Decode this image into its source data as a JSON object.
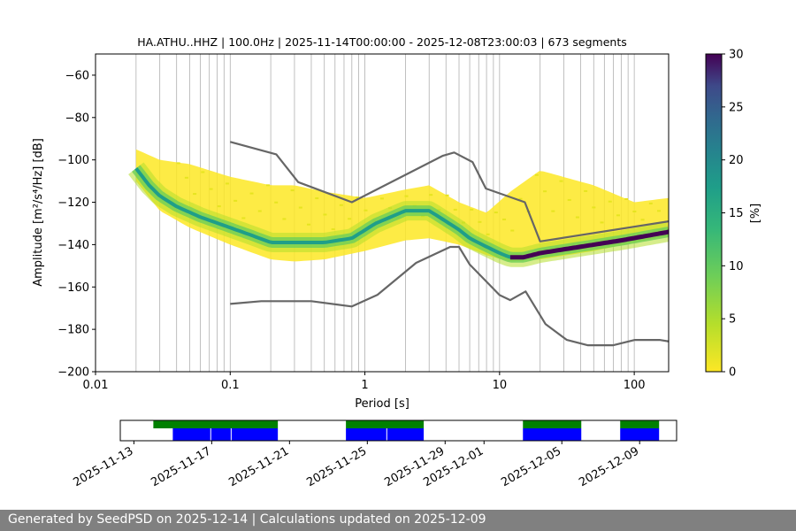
{
  "chart_data": [
    {
      "type": "heatmap",
      "title": "HA.ATHU..HHZ | 100.0Hz | 2025-11-14T00:00:00 - 2025-12-08T23:00:03 | 673 segments",
      "xlabel": "Period [s]",
      "ylabel": "Amplitude [m²/s⁴/Hz] [dB]",
      "x_scale": "log",
      "xlim": [
        0.01,
        180
      ],
      "ylim": [
        -200,
        -50
      ],
      "x_ticks": [
        "0.01",
        "0.1",
        "1",
        "10",
        "100"
      ],
      "y_ticks": [
        "−60",
        "−80",
        "−100",
        "−120",
        "−140",
        "−160",
        "−180",
        "−200"
      ],
      "grid": "vertical gridlines at period decades",
      "colorbar": {
        "label": "[%]",
        "range": [
          0,
          30
        ],
        "ticks": [
          "0",
          "5",
          "10",
          "15",
          "20",
          "25",
          "30"
        ],
        "colormap": "viridis_r"
      },
      "ppsd_mode_curve": {
        "periods": [
          0.02,
          0.025,
          0.03,
          0.04,
          0.06,
          0.1,
          0.15,
          0.2,
          0.3,
          0.5,
          0.8,
          1.2,
          2,
          3,
          4,
          5,
          6,
          8,
          10,
          12,
          15,
          20,
          40,
          80,
          180
        ],
        "db": [
          -104,
          -112,
          -117,
          -122,
          -127,
          -132,
          -136,
          -139,
          -139,
          -139,
          -137,
          -130,
          -124,
          -124,
          -129,
          -133,
          -137,
          -141,
          -144,
          -146,
          -146,
          -144,
          -141,
          -138,
          -134
        ]
      },
      "ppsd_spread": {
        "periods": [
          0.02,
          0.03,
          0.05,
          0.1,
          0.2,
          0.3,
          0.5,
          1,
          2,
          3,
          5,
          8,
          12,
          20,
          50,
          100,
          180
        ],
        "db_low": [
          -110,
          -124,
          -132,
          -140,
          -147,
          -148,
          -147,
          -143,
          -138,
          -137,
          -140,
          -145,
          -148,
          -147,
          -143,
          -139,
          -136
        ],
        "db_high": [
          -95,
          -100,
          -102,
          -108,
          -112,
          -112,
          -115,
          -118,
          -114,
          -112,
          -120,
          -125,
          -115,
          -105,
          -112,
          -120,
          -118
        ]
      },
      "noise_model_high": {
        "periods": [
          0.1,
          0.22,
          0.32,
          0.8,
          3.8,
          4.6,
          6.3,
          7.9,
          15.4,
          20,
          180
        ],
        "db": [
          -91.5,
          -97.4,
          -110.5,
          -120,
          -98,
          -96.5,
          -101,
          -113.5,
          -120,
          -138.5,
          -129
        ]
      },
      "noise_model_low": {
        "periods": [
          0.1,
          0.17,
          0.4,
          0.8,
          1.24,
          2.4,
          4.3,
          5,
          6,
          10,
          12,
          15.6,
          21.9,
          31.6,
          45,
          70,
          101,
          154,
          180
        ],
        "db": [
          -168,
          -166.7,
          -166.7,
          -169.2,
          -163.7,
          -148.6,
          -141.1,
          -141.1,
          -149.4,
          -163.8,
          -166.2,
          -162.1,
          -177.5,
          -185,
          -187.5,
          -187.5,
          -185,
          -185,
          -185.7
        ]
      }
    },
    {
      "type": "timeline",
      "x_ticks": [
        "2025-11-13",
        "2025-11-17",
        "2025-11-21",
        "2025-11-25",
        "2025-11-29",
        "2025-12-01",
        "2025-12-05",
        "2025-12-09"
      ],
      "data_availability": [
        {
          "start": "2025-11-14",
          "end": "2025-11-20.4"
        },
        {
          "start": "2025-11-23.9",
          "end": "2025-11-27.9"
        },
        {
          "start": "2025-12-03.0",
          "end": "2025-12-06.0"
        },
        {
          "start": "2025-12-08.0",
          "end": "2025-12-10.0"
        }
      ],
      "psd_segments": [
        {
          "start": "2025-11-15",
          "end": "2025-11-20.4"
        },
        {
          "start": "2025-11-23.9",
          "end": "2025-11-27.9"
        },
        {
          "start": "2025-12-03.0",
          "end": "2025-12-06.0"
        },
        {
          "start": "2025-12-08.0",
          "end": "2025-12-10.0"
        }
      ],
      "gap_marks": [
        "2025-11-16.95",
        "2025-11-18.0",
        "2025-11-26.0"
      ],
      "colors": {
        "availability": "#008000",
        "segments": "#0000ff"
      }
    }
  ],
  "footer": {
    "text": "Generated by SeedPSD on 2025-12-14 | Calculations updated on 2025-12-09"
  }
}
